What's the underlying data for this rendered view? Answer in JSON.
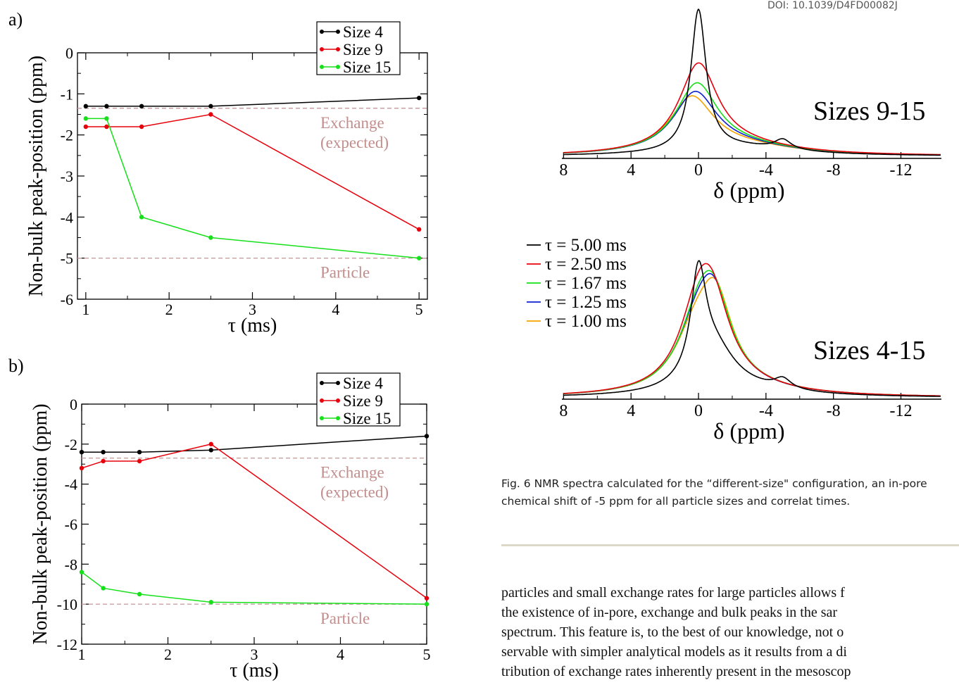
{
  "header": {
    "doi": "DOI: 10.1039/D4FD00082J"
  },
  "figure_a": {
    "panel_label": "a)",
    "xlabel": "τ (ms)",
    "ylabel": "Non-bulk peak-position (ppm)",
    "xticks": [
      "1",
      "2",
      "3",
      "4",
      "5"
    ],
    "yticks": [
      "0",
      "-1",
      "-2",
      "-3",
      "-4",
      "-5",
      "-6"
    ],
    "ref_labels": [
      "Exchange",
      "(expected)",
      "Particle"
    ],
    "legend": [
      "Size 4",
      "Size 9",
      "Size 15"
    ]
  },
  "figure_b": {
    "panel_label": "b)",
    "xlabel": "τ (ms)",
    "ylabel": "Non-bulk peak-position (ppm)",
    "xticks": [
      "1",
      "2",
      "3",
      "4",
      "5"
    ],
    "yticks": [
      "0",
      "-2",
      "-4",
      "-6",
      "-8",
      "-10",
      "-12"
    ],
    "ref_labels": [
      "Exchange",
      "(expected)",
      "Particle"
    ],
    "legend": [
      "Size 4",
      "Size 9",
      "Size 15"
    ]
  },
  "spectra": {
    "top_label": "Sizes 9-15",
    "bottom_label": "Sizes 4-15",
    "xlabel": "δ (ppm)",
    "xticks": [
      "8",
      "4",
      "0",
      "-4",
      "-8",
      "-12"
    ],
    "legend": [
      "τ = 5.00 ms",
      "τ = 2.50 ms",
      "τ = 1.67 ms",
      "τ = 1.25 ms",
      "τ = 1.00 ms"
    ]
  },
  "caption": "Fig.  6 NMR spectra calculated for the “different-size\" configuration, an in-pore chemical shift of -5 ppm for all particle sizes and correlat times.",
  "body_lines": [
    "particles and small exchange rates for large particles allows f",
    "the existence of in-pore, exchange and bulk peaks in the sar",
    "spectrum.  This feature is, to the best of our knowledge, not o",
    "servable with simpler analytical models as it results from a di",
    "tribution of exchange rates inherently present in the mesoscop"
  ],
  "colors": {
    "size4": "#000000",
    "size9": "#e8000b",
    "size15": "#16e01a",
    "ref_line": "#c9a0a0",
    "ref_text": "#c48d8d"
  },
  "chart_data": [
    {
      "type": "line",
      "panel": "a",
      "xlabel": "τ (ms)",
      "ylabel": "Non-bulk peak-position (ppm)",
      "xlim": [
        0.9,
        5.1
      ],
      "ylim": [
        -6,
        0
      ],
      "reference_lines": [
        {
          "label": "Exchange (expected)",
          "y": -1.35
        },
        {
          "label": "Particle",
          "y": -5.0
        }
      ],
      "series": [
        {
          "name": "Size 4",
          "x": [
            1.0,
            1.25,
            1.67,
            2.5,
            5.0
          ],
          "y": [
            -1.3,
            -1.3,
            -1.3,
            -1.3,
            -1.1
          ]
        },
        {
          "name": "Size 9",
          "x": [
            1.0,
            1.25,
            1.67,
            2.5,
            5.0
          ],
          "y": [
            -1.8,
            -1.8,
            -1.8,
            -1.5,
            -4.3
          ]
        },
        {
          "name": "Size 15",
          "x": [
            1.0,
            1.25,
            1.67,
            2.5,
            5.0
          ],
          "y": [
            -1.6,
            -1.6,
            -4.0,
            -4.5,
            -5.0
          ]
        }
      ]
    },
    {
      "type": "line",
      "panel": "b",
      "xlabel": "τ (ms)",
      "ylabel": "Non-bulk peak-position (ppm)",
      "xlim": [
        1.0,
        5.0
      ],
      "ylim": [
        -12,
        0
      ],
      "reference_lines": [
        {
          "label": "Exchange (expected)",
          "y": -2.7
        },
        {
          "label": "Particle",
          "y": -10.0
        }
      ],
      "series": [
        {
          "name": "Size 4",
          "x": [
            1.0,
            1.25,
            1.67,
            2.5,
            5.0
          ],
          "y": [
            -2.4,
            -2.4,
            -2.4,
            -2.3,
            -1.6
          ]
        },
        {
          "name": "Size 9",
          "x": [
            1.0,
            1.25,
            1.67,
            2.5,
            5.0
          ],
          "y": [
            -3.2,
            -2.85,
            -2.85,
            -2.0,
            -9.7
          ]
        },
        {
          "name": "Size 15",
          "x": [
            1.0,
            1.25,
            1.67,
            2.5,
            5.0
          ],
          "y": [
            -8.4,
            -9.2,
            -9.5,
            -9.9,
            -10.0
          ]
        }
      ]
    },
    {
      "type": "line",
      "panel": "spectra-top",
      "label": "Sizes 9-15",
      "xlabel": "δ (ppm)",
      "xlim": [
        8.1,
        -14.4
      ],
      "series": [
        {
          "name": "τ = 5.00 ms",
          "peaks": [
            {
              "pos": 0.0,
              "height": 1.0
            },
            {
              "pos": -5.0,
              "height": 0.07
            }
          ]
        },
        {
          "name": "τ = 2.50 ms",
          "peaks": [
            {
              "pos": 0.0,
              "height": 0.62
            }
          ]
        },
        {
          "name": "τ = 1.67 ms",
          "peaks": [
            {
              "pos": 0.1,
              "height": 0.48
            }
          ]
        },
        {
          "name": "τ = 1.25 ms",
          "peaks": [
            {
              "pos": 0.2,
              "height": 0.42
            }
          ]
        },
        {
          "name": "τ = 1.00 ms",
          "peaks": [
            {
              "pos": 0.4,
              "height": 0.39
            }
          ]
        }
      ]
    },
    {
      "type": "line",
      "panel": "spectra-bottom",
      "label": "Sizes 4-15",
      "xlabel": "δ (ppm)",
      "xlim": [
        8.1,
        -14.4
      ],
      "series": [
        {
          "name": "τ = 5.00 ms",
          "peaks": [
            {
              "pos": 0.0,
              "height": 1.0
            },
            {
              "pos": -0.9,
              "height": 0.42
            },
            {
              "pos": -5.0,
              "height": 0.1
            }
          ]
        },
        {
          "name": "τ = 2.50 ms",
          "peaks": [
            {
              "pos": 0.0,
              "height": 0.68
            },
            {
              "pos": -0.8,
              "height": 0.72
            }
          ]
        },
        {
          "name": "τ = 1.67 ms",
          "peaks": [
            {
              "pos": 0.0,
              "height": 0.58
            },
            {
              "pos": -0.9,
              "height": 0.76
            }
          ]
        },
        {
          "name": "τ = 1.25 ms",
          "peaks": [
            {
              "pos": 0.1,
              "height": 0.52
            },
            {
              "pos": -0.9,
              "height": 0.8
            }
          ]
        },
        {
          "name": "τ = 1.00 ms",
          "peaks": [
            {
              "pos": 0.2,
              "height": 0.48
            },
            {
              "pos": -1.0,
              "height": 0.83
            }
          ]
        }
      ]
    }
  ]
}
